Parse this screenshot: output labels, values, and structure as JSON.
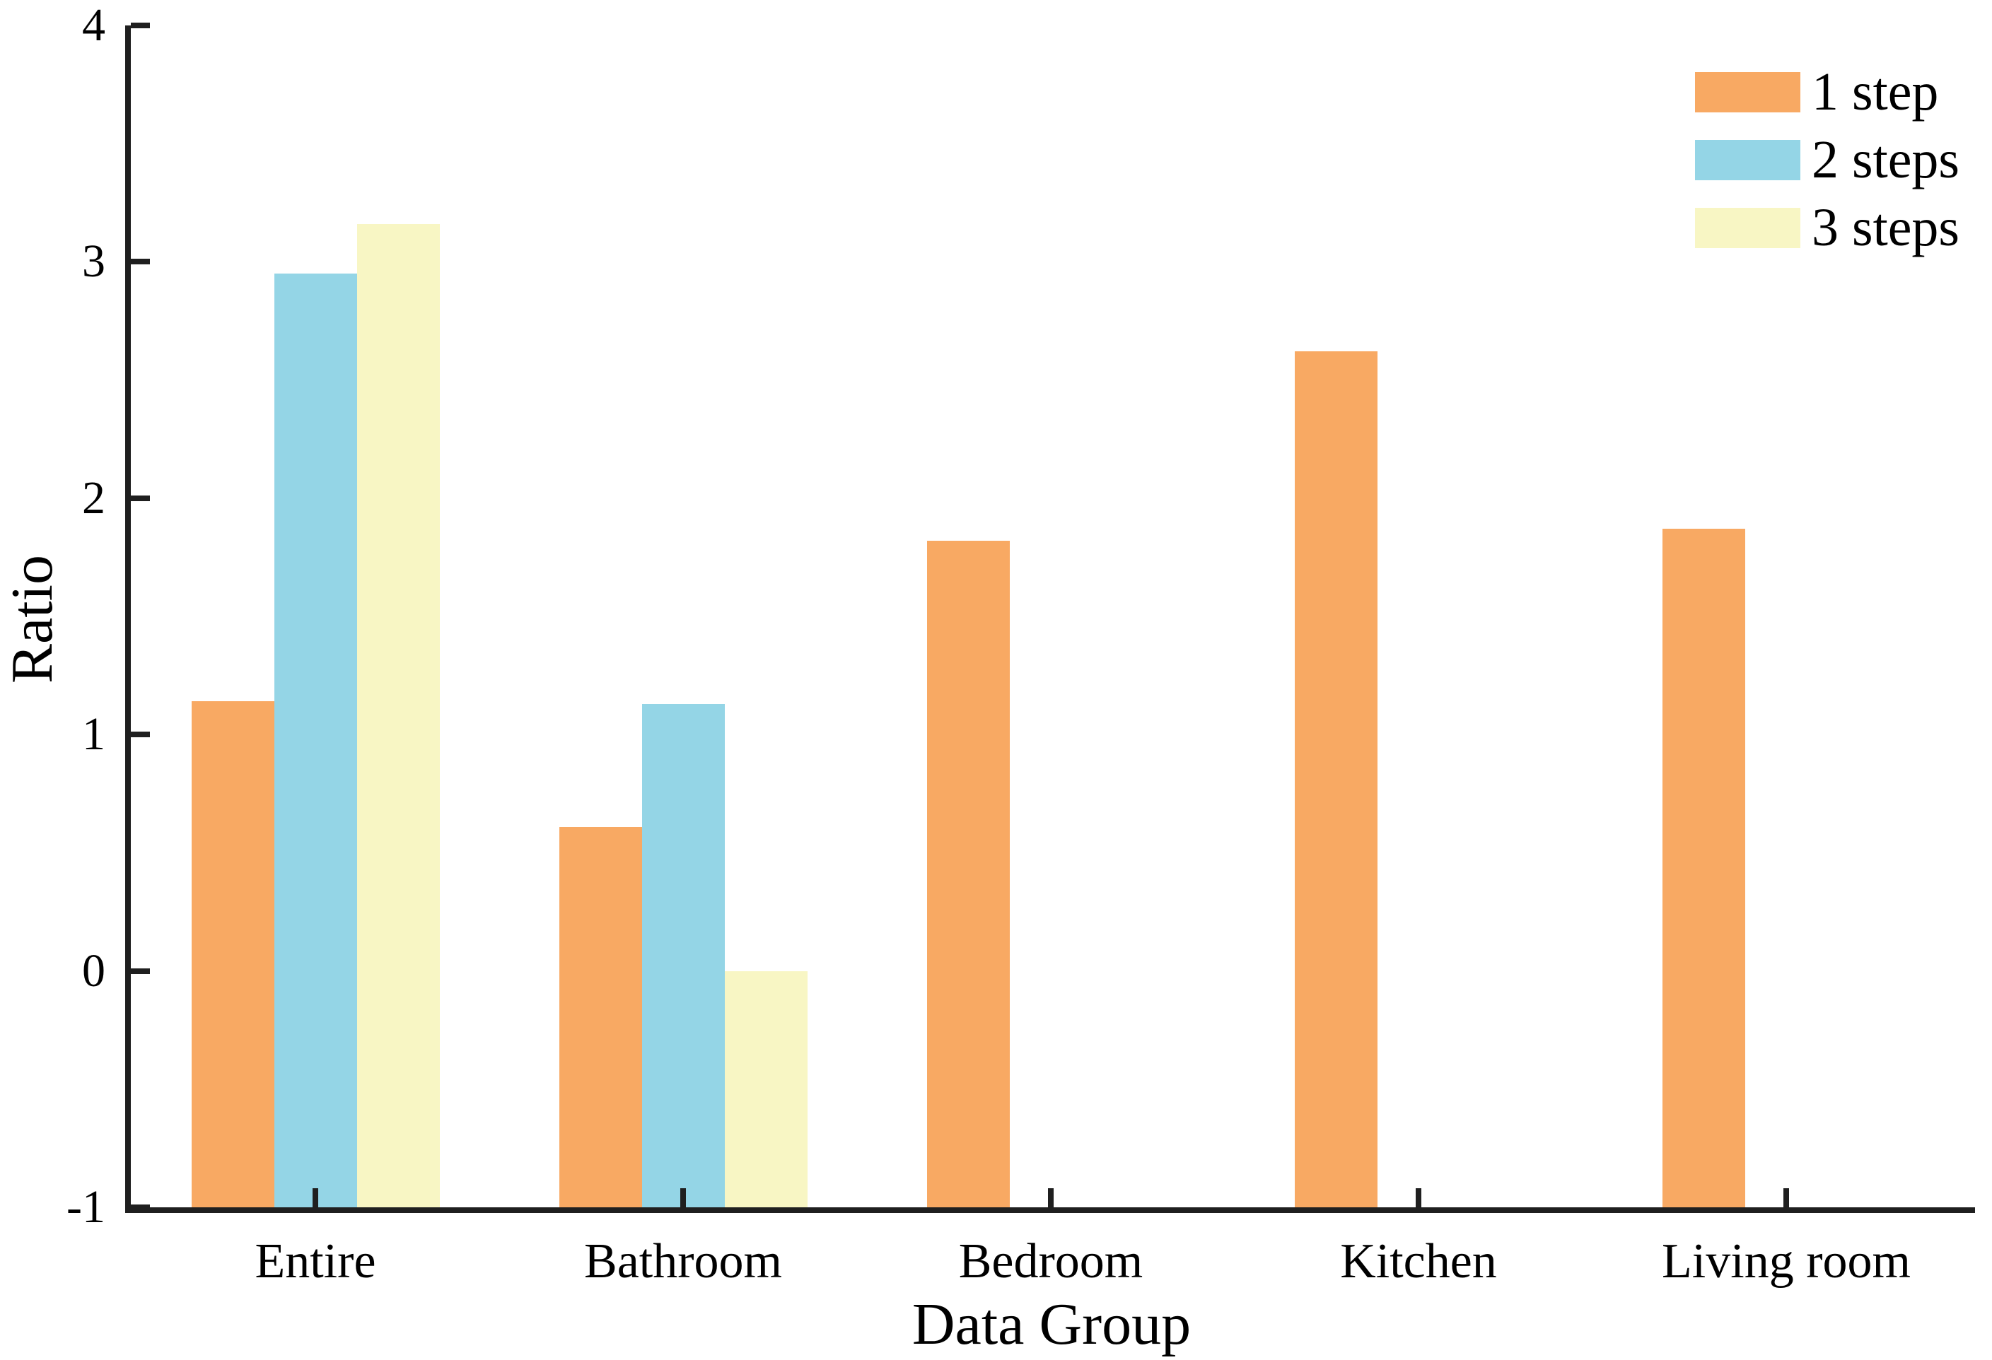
{
  "figure": {
    "background": "#ffffff",
    "axis_color": "#1f1f1f",
    "text_color": "#000000"
  },
  "chart_data": {
    "type": "bar",
    "title": "",
    "xlabel": "Data Group",
    "ylabel": "Ratio",
    "categories": [
      "Entire",
      "Bathroom",
      "Bedroom",
      "Kitchen",
      "Living room"
    ],
    "series": [
      {
        "name": "1 step",
        "color": "#F8A963",
        "values": [
          1.14,
          0.61,
          1.82,
          2.62,
          1.87
        ]
      },
      {
        "name": "2 steps",
        "color": "#94D5E6",
        "values": [
          2.95,
          1.13,
          null,
          null,
          null
        ]
      },
      {
        "name": "3 steps",
        "color": "#F8F6C4",
        "values": [
          3.16,
          0.0,
          null,
          null,
          null
        ]
      }
    ],
    "ylim": [
      -1,
      4
    ],
    "yticks": [
      -1,
      0,
      1,
      2,
      3,
      4
    ],
    "bar_baseline": -1,
    "grid": false,
    "legend_position": "top-right",
    "tick_direction": "in"
  }
}
